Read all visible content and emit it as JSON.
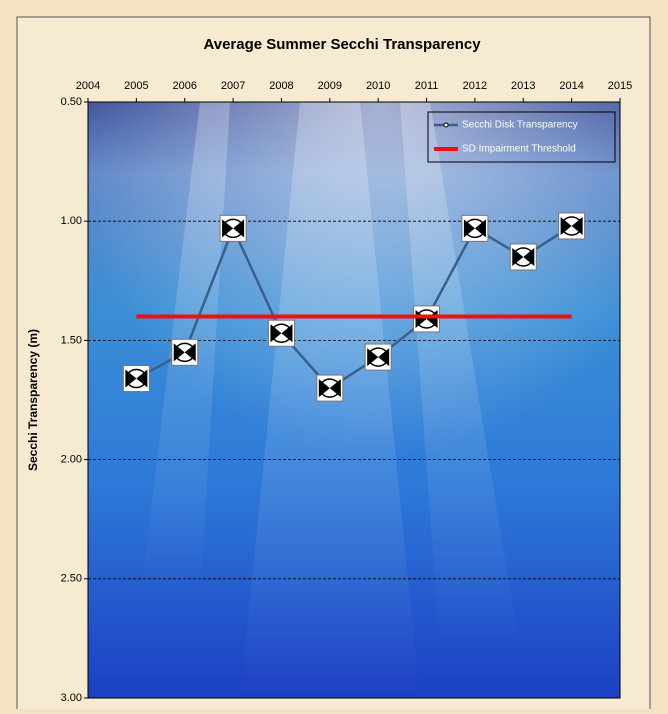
{
  "chart_data": {
    "type": "line",
    "title": "Average Summer Secchi Transparency",
    "y_label": "Secchi Transparency (m)",
    "x": [
      2005,
      2006,
      2007,
      2008,
      2009,
      2010,
      2011,
      2012,
      2013,
      2014
    ],
    "series": [
      {
        "name": "Secchi Disk Transparency",
        "color": "#3a5f8a",
        "values": [
          1.66,
          1.55,
          1.03,
          1.47,
          1.7,
          1.57,
          1.41,
          1.03,
          1.15,
          1.02
        ]
      },
      {
        "name": "SD Impairment Threshold",
        "color": "#ee1111",
        "x": [
          2005,
          2014
        ],
        "values": [
          1.4,
          1.4
        ]
      }
    ],
    "xlim": [
      2004,
      2015
    ],
    "xticks": [
      2004,
      2005,
      2006,
      2007,
      2008,
      2009,
      2010,
      2011,
      2012,
      2013,
      2014,
      2015
    ],
    "ylim": [
      0.5,
      3.0
    ],
    "y_reversed": true,
    "yticks": [
      {
        "value": 0.5,
        "label": "0.50"
      },
      {
        "value": 1.0,
        "label": "1.00"
      },
      {
        "value": 1.5,
        "label": "1.50"
      },
      {
        "value": 2.0,
        "label": "2.00"
      },
      {
        "value": 2.5,
        "label": "2.50"
      },
      {
        "value": 3.0,
        "label": "3.00"
      }
    ],
    "grid": true,
    "legend": "top-right"
  }
}
